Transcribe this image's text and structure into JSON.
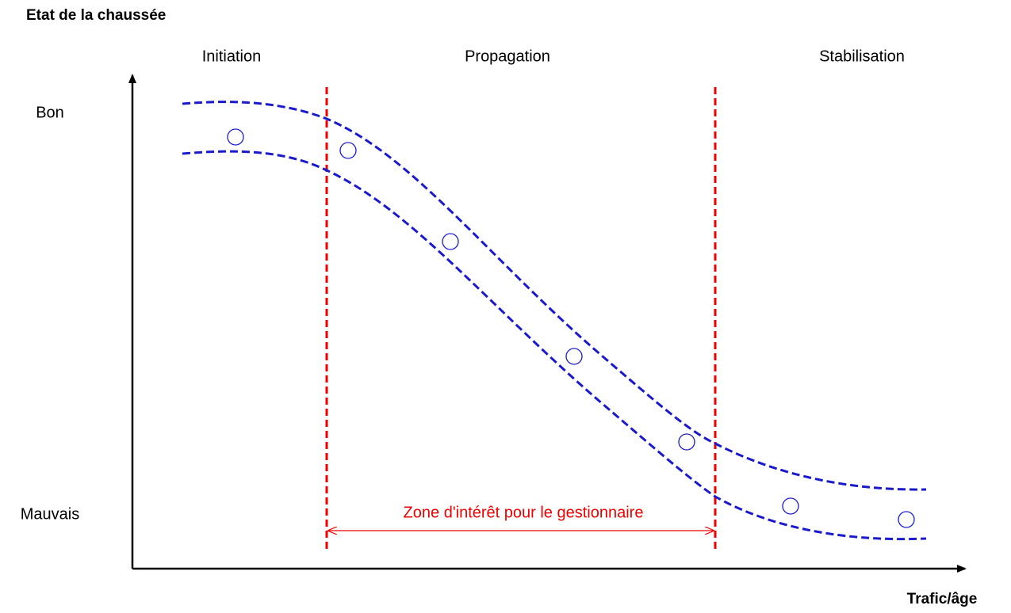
{
  "title": "Etat de la chaussée",
  "phases": [
    "Initiation",
    "Propagation",
    "Stabilisation"
  ],
  "y_labels": {
    "top": "Bon",
    "bottom": "Mauvais"
  },
  "zone_label": "Zone d'intérêt pour le gestionnaire",
  "x_axis_label": "Trafic/âge"
}
